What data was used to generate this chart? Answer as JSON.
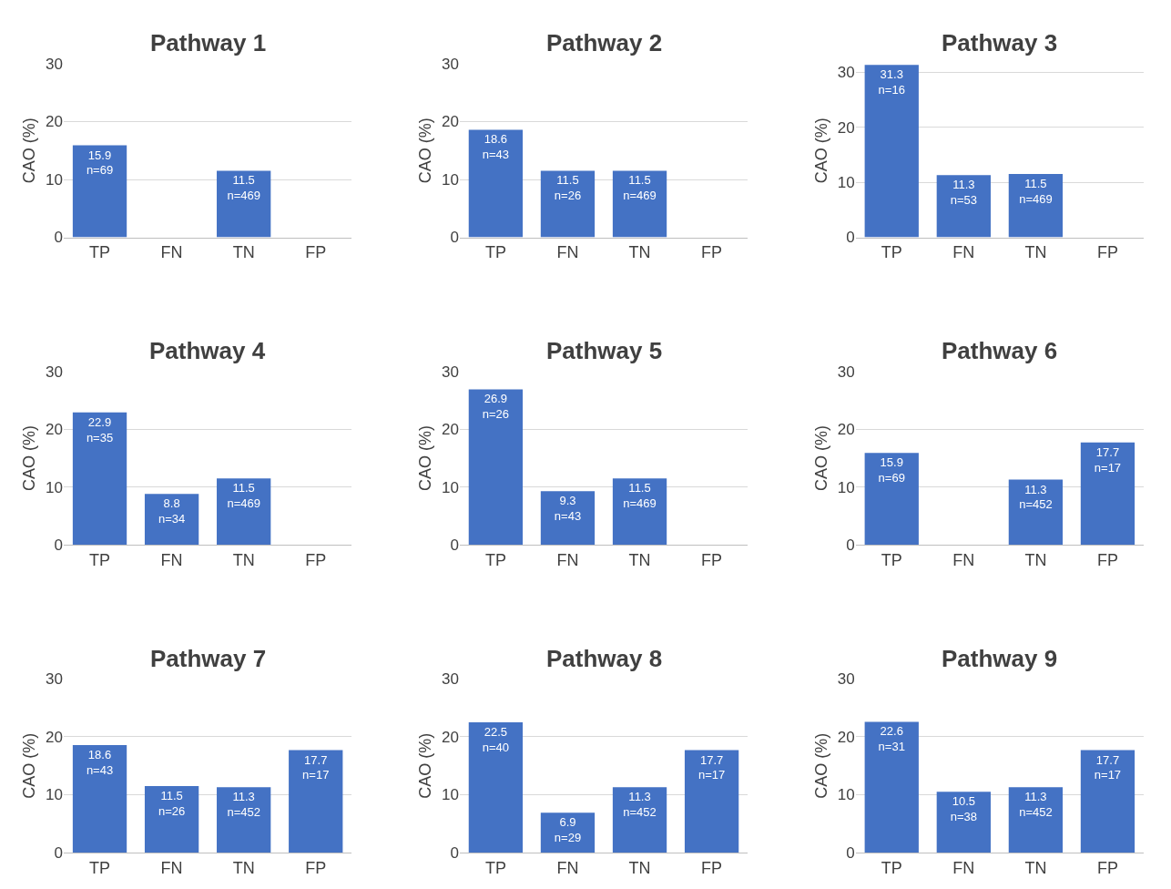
{
  "chart_data": [
    {
      "type": "bar",
      "title": "Pathway 1",
      "ylabel": "CAO (%)",
      "categories": [
        "TP",
        "FN",
        "TN",
        "FP"
      ],
      "values": [
        15.9,
        null,
        11.5,
        null
      ],
      "value_labels": [
        "15.9\nn=69",
        null,
        "11.5\nn=469",
        null
      ],
      "color": "#4472c4",
      "ylim": [
        0,
        30
      ],
      "yticks": [
        0,
        10,
        20,
        30
      ],
      "grid": "y"
    },
    {
      "type": "bar",
      "title": "Pathway 2",
      "ylabel": "CAO (%)",
      "categories": [
        "TP",
        "FN",
        "TN",
        "FP"
      ],
      "values": [
        18.6,
        11.5,
        11.5,
        null
      ],
      "value_labels": [
        "18.6\nn=43",
        "11.5\nn=26",
        "11.5\nn=469",
        null
      ],
      "color": "#4472c4",
      "ylim": [
        0,
        30
      ],
      "yticks": [
        0,
        10,
        20,
        30
      ],
      "grid": "y"
    },
    {
      "type": "bar",
      "title": "Pathway 3",
      "ylabel": "CAO (%)",
      "categories": [
        "TP",
        "FN",
        "TN",
        "FP"
      ],
      "values": [
        31.3,
        11.3,
        11.5,
        null
      ],
      "value_labels": [
        "31.3\nn=16",
        "11.3\nn=53",
        "11.5\nn=469",
        null
      ],
      "color": "#4472c4",
      "ylim": [
        0,
        31.5
      ],
      "yticks": [
        0,
        10,
        20,
        30
      ],
      "grid": "y"
    },
    {
      "type": "bar",
      "title": "Pathway 4",
      "ylabel": "CAO (%)",
      "categories": [
        "TP",
        "FN",
        "TN",
        "FP"
      ],
      "values": [
        22.9,
        8.8,
        11.5,
        null
      ],
      "value_labels": [
        "22.9\nn=35",
        "8.8\nn=34",
        "11.5\nn=469",
        null
      ],
      "color": "#4472c4",
      "ylim": [
        0,
        30
      ],
      "yticks": [
        0,
        10,
        20,
        30
      ],
      "grid": "y"
    },
    {
      "type": "bar",
      "title": "Pathway 5",
      "ylabel": "CAO (%)",
      "categories": [
        "TP",
        "FN",
        "TN",
        "FP"
      ],
      "values": [
        26.9,
        9.3,
        11.5,
        null
      ],
      "value_labels": [
        "26.9\nn=26",
        "9.3\nn=43",
        "11.5\nn=469",
        null
      ],
      "color": "#4472c4",
      "ylim": [
        0,
        30
      ],
      "yticks": [
        0,
        10,
        20,
        30
      ],
      "grid": "y"
    },
    {
      "type": "bar",
      "title": "Pathway 6",
      "ylabel": "CAO (%)",
      "categories": [
        "TP",
        "FN",
        "TN",
        "FP"
      ],
      "values": [
        15.9,
        null,
        11.3,
        17.7
      ],
      "value_labels": [
        "15.9\nn=69",
        null,
        "11.3\nn=452",
        "17.7\nn=17"
      ],
      "color": "#4472c4",
      "ylim": [
        0,
        30
      ],
      "yticks": [
        0,
        10,
        20,
        30
      ],
      "grid": "y"
    },
    {
      "type": "bar",
      "title": "Pathway 7",
      "ylabel": "CAO (%)",
      "categories": [
        "TP",
        "FN",
        "TN",
        "FP"
      ],
      "values": [
        18.6,
        11.5,
        11.3,
        17.7
      ],
      "value_labels": [
        "18.6\nn=43",
        "11.5\nn=26",
        "11.3\nn=452",
        "17.7\nn=17"
      ],
      "color": "#4472c4",
      "ylim": [
        0,
        30
      ],
      "yticks": [
        0,
        10,
        20,
        30
      ],
      "grid": "y"
    },
    {
      "type": "bar",
      "title": "Pathway 8",
      "ylabel": "CAO (%)",
      "categories": [
        "TP",
        "FN",
        "TN",
        "FP"
      ],
      "values": [
        22.5,
        6.9,
        11.3,
        17.7
      ],
      "value_labels": [
        "22.5\nn=40",
        "6.9\nn=29",
        "11.3\nn=452",
        "17.7\nn=17"
      ],
      "color": "#4472c4",
      "ylim": [
        0,
        30
      ],
      "yticks": [
        0,
        10,
        20,
        30
      ],
      "grid": "y"
    },
    {
      "type": "bar",
      "title": "Pathway 9",
      "ylabel": "CAO (%)",
      "categories": [
        "TP",
        "FN",
        "TN",
        "FP"
      ],
      "values": [
        22.6,
        10.5,
        11.3,
        17.7
      ],
      "value_labels": [
        "22.6\nn=31",
        "10.5\nn=38",
        "11.3\nn=452",
        "17.7\nn=17"
      ],
      "color": "#4472c4",
      "ylim": [
        0,
        30
      ],
      "yticks": [
        0,
        10,
        20,
        30
      ],
      "grid": "y"
    }
  ]
}
